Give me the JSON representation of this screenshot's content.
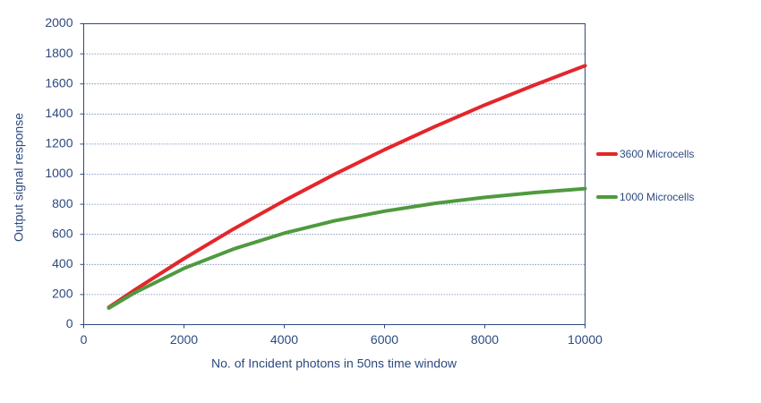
{
  "chart_data": {
    "type": "line",
    "x": [
      500,
      1000,
      2000,
      3000,
      4000,
      5000,
      6000,
      7000,
      8000,
      9000,
      10000
    ],
    "series": [
      {
        "name": "3600 Microcells",
        "color": "#e3262b",
        "values": [
          115,
          227,
          439,
          638,
          824,
          999,
          1163,
          1316,
          1460,
          1594,
          1721
        ]
      },
      {
        "name": "1000 Microcells",
        "color": "#4f9a3f",
        "values": [
          110,
          209,
          374,
          504,
          608,
          690,
          754,
          806,
          846,
          878,
          904
        ]
      }
    ],
    "xlabel": "No. of Incident photons in 50ns time window",
    "ylabel": "Output signal response",
    "xlim": [
      0,
      10000
    ],
    "xticks": [
      0,
      2000,
      4000,
      6000,
      8000,
      10000
    ],
    "ylim": [
      0,
      2000
    ],
    "yticks": [
      0,
      200,
      400,
      600,
      800,
      1000,
      1200,
      1400,
      1600,
      1800,
      2000
    ],
    "grid": true,
    "legend": "right"
  }
}
